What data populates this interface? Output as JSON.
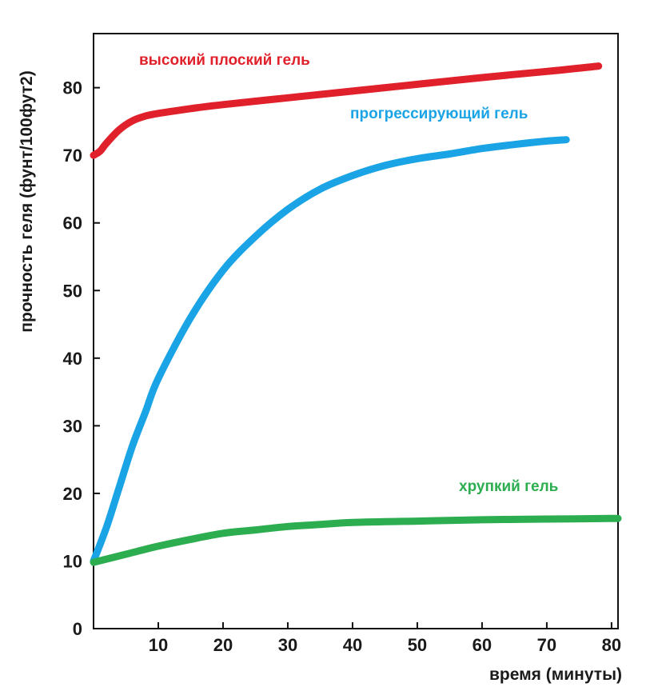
{
  "chart_data": {
    "type": "line",
    "xlabel": "время (минуты)",
    "ylabel": "прочность геля (фунт/100фут2)",
    "xlim": [
      0,
      81
    ],
    "ylim": [
      0,
      88
    ],
    "x_ticks": [
      10,
      20,
      30,
      40,
      50,
      60,
      70,
      80
    ],
    "y_ticks": [
      0,
      10,
      20,
      30,
      40,
      50,
      60,
      70,
      80
    ],
    "grid": false,
    "series": [
      {
        "name": "высокий плоский гель",
        "color": "#e0202a",
        "x": [
          0,
          1,
          2,
          4,
          6,
          8,
          10,
          15,
          20,
          30,
          40,
          50,
          60,
          70,
          78
        ],
        "y": [
          70,
          70.6,
          71.8,
          73.8,
          75.1,
          75.8,
          76.2,
          76.9,
          77.5,
          78.5,
          79.5,
          80.5,
          81.5,
          82.4,
          83.2
        ]
      },
      {
        "name": "прогрессирующий гель",
        "color": "#1aa4e6",
        "x": [
          0,
          2,
          4,
          6,
          8,
          10,
          15,
          20,
          25,
          30,
          35,
          40,
          45,
          50,
          55,
          60,
          65,
          70,
          73
        ],
        "y": [
          10,
          15,
          21,
          27,
          32,
          37,
          46,
          53,
          58,
          62,
          65,
          67,
          68.5,
          69.5,
          70.2,
          71,
          71.6,
          72.1,
          72.3
        ]
      },
      {
        "name": "хрупкий гель",
        "color": "#2cad4f",
        "x": [
          0,
          5,
          10,
          15,
          20,
          25,
          30,
          35,
          40,
          50,
          60,
          70,
          81
        ],
        "y": [
          9.8,
          11,
          12.2,
          13.2,
          14.1,
          14.6,
          15.1,
          15.4,
          15.7,
          15.9,
          16.1,
          16.2,
          16.3
        ]
      }
    ]
  }
}
